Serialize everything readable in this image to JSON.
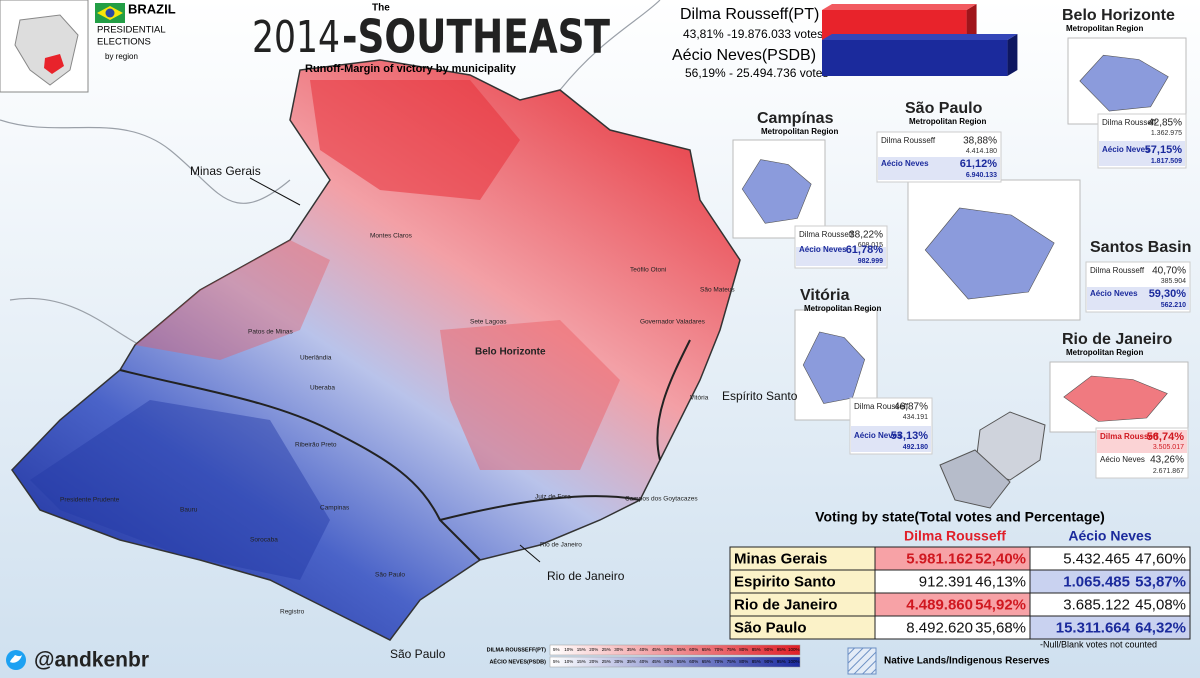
{
  "header": {
    "title_small": "The",
    "title_year": "2014",
    "title_main": "-SOUTHEAST",
    "subtitle": "Runoff-Margin of victory by municipality",
    "brand": [
      "BRAZIL",
      "PRESIDENTIAL",
      "ELECTIONS",
      "by region"
    ]
  },
  "national": [
    {
      "name": "Dilma Rousseff(PT)",
      "result": "43,81% -19.876.033 votes",
      "share": 43.81,
      "color": "#e8232b"
    },
    {
      "name": "Aécio Neves(PSDB)",
      "result": "56,19% - 25.494.736 votes",
      "share": 56.19,
      "color": "#1b2a9c"
    }
  ],
  "insets": [
    {
      "title": "Belo Horizonte",
      "subtitle": "Metropolitan Region",
      "dilma_label": "Dilma Rousseff",
      "dilma_pct": "42,85%",
      "dilma_votes": "1.362.975",
      "aecio_label": "Aécio Neves",
      "aecio_pct": "57,15%",
      "aecio_votes": "1.817.509",
      "winner": "aecio"
    },
    {
      "title": "Campínas",
      "subtitle": "Metropolitan Region",
      "dilma_label": "Dilma Rousseff",
      "dilma_pct": "38,22%",
      "dilma_votes": "608.015",
      "aecio_label": "Aécio Neves",
      "aecio_pct": "61,78%",
      "aecio_votes": "982.999",
      "winner": "aecio"
    },
    {
      "title": "São Paulo",
      "subtitle": "Metropolitan Region",
      "dilma_label": "Dilma Rousseff",
      "dilma_pct": "38,88%",
      "dilma_votes": "4.414.180",
      "aecio_label": "Aécio Neves",
      "aecio_pct": "61,12%",
      "aecio_votes": "6.940.133",
      "winner": "aecio"
    },
    {
      "title": "Santos Basin",
      "dilma_label": "Dilma Rousseff",
      "dilma_pct": "40,70%",
      "dilma_votes": "385.904",
      "aecio_label": "Aécio Neves",
      "aecio_pct": "59,30%",
      "aecio_votes": "562.210",
      "winner": "aecio"
    },
    {
      "title": "Vitória",
      "subtitle": "Metropolitan Region",
      "dilma_label": "Dilma Rousseff",
      "dilma_pct": "46,87%",
      "dilma_votes": "434.191",
      "aecio_label": "Aécio Neves",
      "aecio_pct": "53,13%",
      "aecio_votes": "492.180",
      "winner": "aecio"
    },
    {
      "title": "Rio de Janeiro",
      "subtitle": "Metropolitan Region",
      "dilma_label": "Dilma Rousseff",
      "dilma_pct": "56,74%",
      "dilma_votes": "3.505.017",
      "aecio_label": "Aécio Neves",
      "aecio_pct": "43,26%",
      "aecio_votes": "2.671.867",
      "winner": "dilma"
    }
  ],
  "table": {
    "title": "Voting by state(Total votes and Percentage)",
    "headers": [
      "Dilma Rousseff",
      "Aécio Neves"
    ],
    "rows": [
      [
        "Minas Gerais",
        "5.981.162",
        "52,40%",
        "5.432.465",
        "47,60%"
      ],
      [
        "Espirito Santo",
        "912.391",
        "46,13%",
        "1.065.485",
        "53,87%"
      ],
      [
        "Rio de Janeiro",
        "4.489.860",
        "54,92%",
        "3.685.122",
        "45,08%"
      ],
      [
        "São Paulo",
        "8.492.620",
        "35,68%",
        "15.311.664",
        "64,32%"
      ]
    ],
    "note": "-Null/Blank votes not counted"
  },
  "map_labels": {
    "states": [
      "Minas Gerais",
      "Espírito Santo",
      "Rio de Janeiro",
      "São Paulo"
    ],
    "cities": [
      "Montes Claros",
      "Teófilo Otoni",
      "Governador Valadares",
      "Belo Horizonte",
      "Uberlândia",
      "Uberaba",
      "Patos de Minas",
      "Sete Lagoas",
      "Juiz de Fora",
      "Vitória",
      "Campos dos Goytacazes",
      "Rio de Janeiro",
      "São Paulo",
      "Ribeirão Preto",
      "Campinas",
      "Sorocaba",
      "Bauru",
      "Presidente Prudente",
      "São Mateus",
      "Registro"
    ]
  },
  "legend": {
    "dilma": "DILMA ROUSSEFF(PT)",
    "aecio": "AÉCIO NEVES(PSDB)",
    "steps": [
      "5%",
      "10%",
      "15%",
      "20%",
      "25%",
      "30%",
      "35%",
      "40%",
      "45%",
      "50%",
      "55%",
      "60%",
      "65%",
      "70%",
      "75%",
      "80%",
      "85%",
      "90%",
      "95%",
      "100%"
    ],
    "reserves": "Native Lands/Indigenous Reserves"
  },
  "credit": "@andkenbr"
}
